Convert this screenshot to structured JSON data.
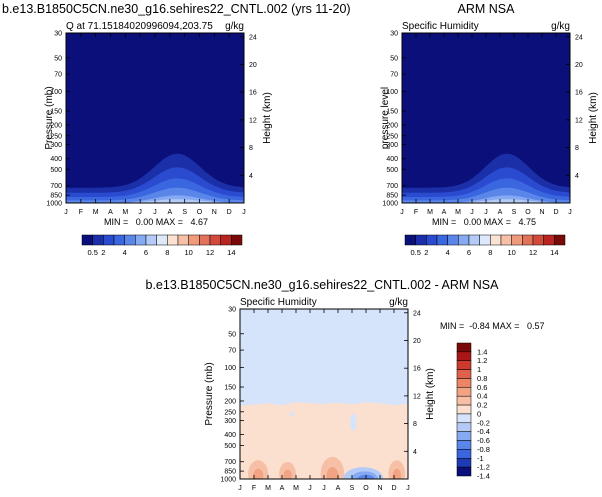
{
  "palette": {
    "humidity": [
      "#0b0f7a",
      "#1a2fa8",
      "#2a4bd0",
      "#3a66e0",
      "#5a86ea",
      "#86aaf2",
      "#b4cbf8",
      "#dde8fb",
      "#fbe2d2",
      "#f7c0a6",
      "#f09a7c",
      "#e4725a",
      "#d14a3c",
      "#b82520",
      "#7a0a0a"
    ],
    "diff": [
      "#0b0f7a",
      "#1e3ab5",
      "#3a66e0",
      "#5a86ea",
      "#86aaf2",
      "#b4cbf8",
      "#d5e4fa",
      "#fbe0cf",
      "#f7c0a6",
      "#f2a384",
      "#ec8566",
      "#e0604a",
      "#cc3a2e",
      "#a81616",
      "#7a0a0a"
    ]
  },
  "chart_data": [
    {
      "type": "heatmap",
      "header_left": "b.e13.B1850C5CN.ne30_g16.sehires22_CNTL.002 (yrs 11-20)",
      "title": "Q at 71.15184020996094,203.75",
      "units": "g/kg",
      "ylabel": "Pressure (mb)",
      "y2label": "Height (km)",
      "x_ticks": [
        "J",
        "F",
        "M",
        "A",
        "M",
        "J",
        "J",
        "A",
        "S",
        "O",
        "N",
        "D",
        "J"
      ],
      "y_ticks": [
        "30",
        "50",
        "70",
        "100",
        "150",
        "200",
        "250",
        "300",
        "400",
        "500",
        "700",
        "850",
        "1000"
      ],
      "y2_ticks": [
        "24",
        "20",
        "16",
        "12",
        "8",
        "4"
      ],
      "min": "0.00",
      "max": "4.67",
      "minmax_text": "MIN =   0.00 MAX =   4.67",
      "colorbar_labels": [
        "0.5",
        "2",
        "4",
        "6",
        "8",
        "10",
        "12",
        "14"
      ],
      "peak_month": 7.5,
      "peak_value": 4.67
    },
    {
      "type": "heatmap",
      "title": "Specific Humidity",
      "center_title": "ARM NSA",
      "units": "g/kg",
      "ylabel": "pressure level",
      "y2label": "Height (km)",
      "x_ticks": [
        "J",
        "F",
        "M",
        "A",
        "M",
        "J",
        "J",
        "A",
        "S",
        "O",
        "N",
        "D",
        "J"
      ],
      "y_ticks": [
        "30",
        "50",
        "70",
        "100",
        "150",
        "200",
        "250",
        "300",
        "400",
        "500",
        "700",
        "850",
        "1000"
      ],
      "y2_ticks": [
        "24",
        "20",
        "16",
        "12",
        "8",
        "4"
      ],
      "min": "0.00",
      "max": "4.75",
      "minmax_text": "MIN =   0.00 MAX =   4.75",
      "colorbar_labels": [
        "0.5",
        "2",
        "4",
        "6",
        "8",
        "10",
        "12",
        "14"
      ],
      "peak_month": 7.5,
      "peak_value": 4.75
    },
    {
      "type": "heatmap",
      "center_title": "b.e13.B1850C5CN.ne30_g16.sehires22_CNTL.002 - ARM NSA",
      "title": "Specific Humidity",
      "units": "g/kg",
      "ylabel": "Pressure (mb)",
      "y2label": "Height (km)",
      "x_ticks": [
        "J",
        "F",
        "M",
        "A",
        "M",
        "J",
        "J",
        "A",
        "S",
        "O",
        "N",
        "D",
        "J"
      ],
      "y_ticks": [
        "30",
        "50",
        "70",
        "100",
        "150",
        "200",
        "250",
        "300",
        "400",
        "500",
        "700",
        "850",
        "1000"
      ],
      "y2_ticks": [
        "24",
        "20",
        "16",
        "12",
        "8",
        "4"
      ],
      "minmax_text": "MIN =  -0.84 MAX =   0.57",
      "min": "-0.84",
      "max": "0.57",
      "colorbar_labels": [
        "1.4",
        "1.2",
        "1",
        "0.8",
        "0.6",
        "0.4",
        "0.2",
        "0",
        "-0.2",
        "-0.4",
        "-0.6",
        "-0.8",
        "-1",
        "-1.2",
        "-1.4"
      ]
    }
  ]
}
